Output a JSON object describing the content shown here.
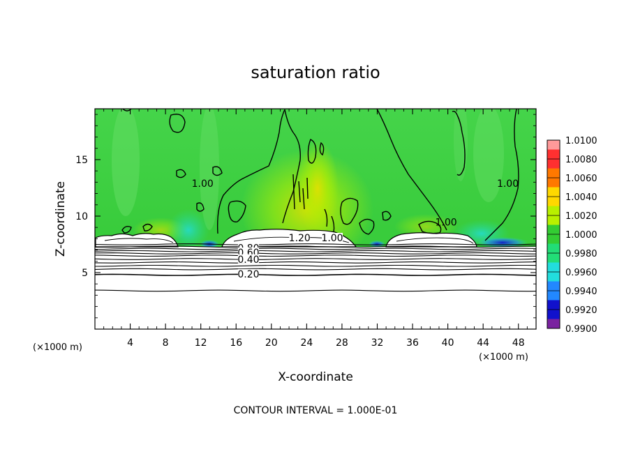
{
  "chart_data": {
    "type": "heatmap",
    "title": "saturation ratio",
    "xlabel": "X-coordinate",
    "ylabel": "Z-coordinate",
    "x_unit": "(×1000 m)",
    "xlim": [
      0,
      50
    ],
    "ylim": [
      0,
      19.5
    ],
    "x_ticks": [
      4,
      8,
      12,
      16,
      20,
      24,
      28,
      32,
      36,
      40,
      44,
      48
    ],
    "y_ticks": [
      5,
      10,
      15
    ],
    "colorbar": {
      "levels": [
        "1.0100",
        "1.0080",
        "1.0060",
        "1.0040",
        "1.0020",
        "1.0000",
        "0.9980",
        "0.9960",
        "0.9940",
        "0.9920",
        "0.9900"
      ],
      "colors": [
        "#ff9a9a",
        "#ff3030",
        "#ff7800",
        "#ffd800",
        "#b8f000",
        "#33cc33",
        "#22dd77",
        "#22dddd",
        "#2288ff",
        "#1111cc",
        "#7a22a0"
      ]
    },
    "contour_interval_label": "CONTOUR INTERVAL = 1.000E-01",
    "contour_labels": [
      {
        "text": "1.00",
        "x": 12.2,
        "z": 12.7
      },
      {
        "text": "1.00",
        "x": 46.8,
        "z": 12.7
      },
      {
        "text": "1.00",
        "x": 39.8,
        "z": 9.3
      },
      {
        "text": "1.20",
        "x": 23.2,
        "z": 7.9
      },
      {
        "text": "1.00",
        "x": 26.9,
        "z": 7.9
      },
      {
        "text": "0.80",
        "x": 17.4,
        "z": 7.0
      },
      {
        "text": "0.60",
        "x": 17.4,
        "z": 6.6
      },
      {
        "text": "0.40",
        "x": 17.4,
        "z": 6.0
      },
      {
        "text": "0.20",
        "x": 17.4,
        "z": 4.7
      }
    ],
    "low_contours_z": [
      7.5,
      7.3,
      7.1,
      6.9,
      6.7,
      6.5,
      6.2,
      5.9,
      5.6,
      5.3,
      4.8,
      3.4
    ],
    "cloud_regions": [
      {
        "x": [
          0.2,
          10.0
        ],
        "ztop": 8.5
      },
      {
        "x": [
          14.6,
          30.0
        ],
        "ztop": 9.0
      },
      {
        "x": [
          32.6,
          42.6
        ],
        "ztop": 8.6
      }
    ]
  }
}
